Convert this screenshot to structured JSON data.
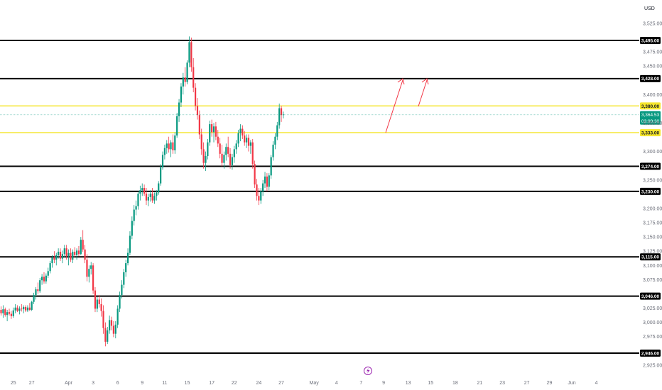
{
  "chart_data": {
    "type": "candlestick",
    "currency": "USD",
    "ylim": [
      2912,
      3538
    ],
    "y_ticks": [
      "3,525.00",
      "3,475.00",
      "3,450.00",
      "3,400.00",
      "3,350.00",
      "3,300.00",
      "3,250.00",
      "3,200.00",
      "3,175.00",
      "3,150.00",
      "3,125.00",
      "3,100.00",
      "3,075.00",
      "3,025.00",
      "3,000.00",
      "2,975.00",
      "2,925.00"
    ],
    "y_tick_values": [
      3525,
      3475,
      3450,
      3400,
      3350,
      3300,
      3250,
      3200,
      3175,
      3150,
      3125,
      3100,
      3075,
      3025,
      3000,
      2975,
      2925
    ],
    "x_ticks": [
      "25",
      "27",
      "Apr",
      "3",
      "6",
      "9",
      "11",
      "15",
      "17",
      "22",
      "24",
      "27",
      "May",
      "4",
      "7",
      "9",
      "13",
      "15",
      "18",
      "21",
      "23",
      "27",
      "29",
      "Jun",
      "4"
    ],
    "x_tick_index": [
      6,
      15,
      33,
      45,
      57,
      69,
      80,
      91,
      103,
      114,
      126,
      137,
      153,
      164,
      176,
      187,
      199,
      210,
      222,
      234,
      245,
      257,
      268,
      279,
      291
    ],
    "levels": [
      {
        "value": 3495,
        "label": "3,495.00",
        "color": "#000000"
      },
      {
        "value": 3428,
        "label": "3,428.00",
        "color": "#000000"
      },
      {
        "value": 3380,
        "label": "3,380.00",
        "color": "#f5e52d"
      },
      {
        "value": 3333,
        "label": "3,333.00",
        "color": "#f5e52d"
      },
      {
        "value": 3274,
        "label": "3,274.00",
        "color": "#000000"
      },
      {
        "value": 3230,
        "label": "3,230.00",
        "color": "#000000"
      },
      {
        "value": 3115,
        "label": "3,115.00",
        "color": "#000000"
      },
      {
        "value": 3046,
        "label": "3,046.00",
        "color": "#000000"
      },
      {
        "value": 2946,
        "label": "2,946.00",
        "color": "#000000"
      }
    ],
    "current_price": {
      "value": 3364.53,
      "label": "3,364.53",
      "countdown": "03:09:30",
      "color": "#089981"
    },
    "colors": {
      "up": "#089981",
      "down": "#f23645",
      "arrow": "#f23645"
    },
    "candles": [
      [
        3022,
        3028,
        3012,
        3016
      ],
      [
        3016,
        3030,
        3008,
        3023
      ],
      [
        3023,
        3026,
        3010,
        3013
      ],
      [
        3013,
        3022,
        3002,
        3018
      ],
      [
        3018,
        3024,
        3012,
        3015
      ],
      [
        3015,
        3020,
        3006,
        3011
      ],
      [
        3011,
        3026,
        3008,
        3021
      ],
      [
        3021,
        3032,
        3016,
        3026
      ],
      [
        3026,
        3030,
        3018,
        3020
      ],
      [
        3020,
        3028,
        3014,
        3024
      ],
      [
        3024,
        3032,
        3019,
        3023
      ],
      [
        3023,
        3030,
        3016,
        3027
      ],
      [
        3027,
        3030,
        3018,
        3021
      ],
      [
        3021,
        3030,
        3018,
        3026
      ],
      [
        3026,
        3034,
        3020,
        3022
      ],
      [
        3022,
        3038,
        3020,
        3036
      ],
      [
        3036,
        3052,
        3032,
        3048
      ],
      [
        3048,
        3062,
        3040,
        3058
      ],
      [
        3058,
        3070,
        3050,
        3055
      ],
      [
        3055,
        3078,
        3052,
        3074
      ],
      [
        3074,
        3085,
        3066,
        3080
      ],
      [
        3080,
        3088,
        3068,
        3072
      ],
      [
        3072,
        3086,
        3068,
        3082
      ],
      [
        3082,
        3096,
        3078,
        3090
      ],
      [
        3090,
        3108,
        3086,
        3104
      ],
      [
        3104,
        3118,
        3096,
        3114
      ],
      [
        3114,
        3125,
        3104,
        3110
      ],
      [
        3110,
        3122,
        3100,
        3118
      ],
      [
        3118,
        3130,
        3112,
        3124
      ],
      [
        3124,
        3130,
        3108,
        3112
      ],
      [
        3112,
        3126,
        3104,
        3120
      ],
      [
        3120,
        3136,
        3114,
        3130
      ],
      [
        3130,
        3136,
        3110,
        3116
      ],
      [
        3116,
        3128,
        3100,
        3122
      ],
      [
        3122,
        3130,
        3106,
        3110
      ],
      [
        3110,
        3128,
        3104,
        3124
      ],
      [
        3124,
        3132,
        3114,
        3118
      ],
      [
        3118,
        3130,
        3110,
        3126
      ],
      [
        3126,
        3134,
        3116,
        3120
      ],
      [
        3120,
        3150,
        3118,
        3145
      ],
      [
        3145,
        3162,
        3124,
        3128
      ],
      [
        3128,
        3136,
        3104,
        3110
      ],
      [
        3110,
        3120,
        3072,
        3080
      ],
      [
        3080,
        3100,
        3070,
        3094
      ],
      [
        3094,
        3106,
        3084,
        3100
      ],
      [
        3100,
        3104,
        3050,
        3056
      ],
      [
        3056,
        3062,
        3018,
        3024
      ],
      [
        3024,
        3045,
        3018,
        3040
      ],
      [
        3040,
        3048,
        3026,
        3032
      ],
      [
        3032,
        3042,
        3010,
        3020
      ],
      [
        3020,
        3030,
        2980,
        2990
      ],
      [
        2990,
        3000,
        2958,
        2966
      ],
      [
        2966,
        2992,
        2962,
        2986
      ],
      [
        2986,
        3012,
        2980,
        3004
      ],
      [
        3004,
        3010,
        2986,
        2994
      ],
      [
        2994,
        3002,
        2974,
        2980
      ],
      [
        2980,
        3002,
        2972,
        2996
      ],
      [
        2996,
        3030,
        2990,
        3024
      ],
      [
        3024,
        3054,
        3018,
        3048
      ],
      [
        3048,
        3074,
        3042,
        3066
      ],
      [
        3066,
        3094,
        3060,
        3088
      ],
      [
        3088,
        3110,
        3080,
        3104
      ],
      [
        3104,
        3130,
        3100,
        3122
      ],
      [
        3122,
        3160,
        3118,
        3152
      ],
      [
        3152,
        3186,
        3146,
        3178
      ],
      [
        3178,
        3206,
        3170,
        3198
      ],
      [
        3198,
        3214,
        3188,
        3204
      ],
      [
        3204,
        3230,
        3198,
        3226
      ],
      [
        3226,
        3240,
        3214,
        3232
      ],
      [
        3232,
        3244,
        3222,
        3236
      ],
      [
        3236,
        3242,
        3222,
        3226
      ],
      [
        3226,
        3236,
        3206,
        3214
      ],
      [
        3214,
        3226,
        3204,
        3220
      ],
      [
        3220,
        3232,
        3212,
        3226
      ],
      [
        3226,
        3236,
        3210,
        3214
      ],
      [
        3214,
        3228,
        3208,
        3222
      ],
      [
        3222,
        3232,
        3214,
        3228
      ],
      [
        3228,
        3248,
        3224,
        3244
      ],
      [
        3244,
        3278,
        3240,
        3272
      ],
      [
        3272,
        3300,
        3268,
        3294
      ],
      [
        3294,
        3312,
        3286,
        3306
      ],
      [
        3306,
        3320,
        3296,
        3314
      ],
      [
        3314,
        3326,
        3298,
        3304
      ],
      [
        3304,
        3320,
        3290,
        3316
      ],
      [
        3316,
        3330,
        3296,
        3302
      ],
      [
        3302,
        3334,
        3296,
        3328
      ],
      [
        3328,
        3368,
        3324,
        3362
      ],
      [
        3362,
        3392,
        3352,
        3386
      ],
      [
        3386,
        3420,
        3378,
        3414
      ],
      [
        3414,
        3438,
        3400,
        3430
      ],
      [
        3430,
        3448,
        3414,
        3422
      ],
      [
        3422,
        3460,
        3418,
        3456
      ],
      [
        3456,
        3502,
        3448,
        3492
      ],
      [
        3492,
        3500,
        3440,
        3448
      ],
      [
        3448,
        3464,
        3404,
        3412
      ],
      [
        3412,
        3420,
        3372,
        3380
      ],
      [
        3380,
        3394,
        3356,
        3364
      ],
      [
        3364,
        3372,
        3322,
        3330
      ],
      [
        3330,
        3340,
        3294,
        3304
      ],
      [
        3304,
        3316,
        3270,
        3280
      ],
      [
        3280,
        3300,
        3266,
        3292
      ],
      [
        3292,
        3322,
        3286,
        3316
      ],
      [
        3316,
        3354,
        3310,
        3348
      ],
      [
        3348,
        3356,
        3326,
        3334
      ],
      [
        3334,
        3350,
        3316,
        3344
      ],
      [
        3344,
        3352,
        3320,
        3326
      ],
      [
        3326,
        3338,
        3308,
        3314
      ],
      [
        3314,
        3324,
        3288,
        3296
      ],
      [
        3296,
        3312,
        3274,
        3280
      ],
      [
        3280,
        3300,
        3270,
        3294
      ],
      [
        3294,
        3314,
        3284,
        3308
      ],
      [
        3308,
        3326,
        3290,
        3296
      ],
      [
        3296,
        3306,
        3270,
        3276
      ],
      [
        3276,
        3296,
        3268,
        3290
      ],
      [
        3290,
        3310,
        3280,
        3304
      ],
      [
        3304,
        3320,
        3296,
        3314
      ],
      [
        3314,
        3338,
        3308,
        3332
      ],
      [
        3332,
        3348,
        3318,
        3340
      ],
      [
        3340,
        3346,
        3322,
        3328
      ],
      [
        3328,
        3336,
        3310,
        3316
      ],
      [
        3316,
        3330,
        3306,
        3324
      ],
      [
        3324,
        3330,
        3300,
        3310
      ],
      [
        3310,
        3320,
        3296,
        3316
      ],
      [
        3316,
        3322,
        3270,
        3278
      ],
      [
        3278,
        3284,
        3236,
        3242
      ],
      [
        3242,
        3252,
        3214,
        3222
      ],
      [
        3222,
        3236,
        3206,
        3214
      ],
      [
        3214,
        3236,
        3208,
        3230
      ],
      [
        3230,
        3250,
        3222,
        3244
      ],
      [
        3244,
        3264,
        3236,
        3256
      ],
      [
        3256,
        3262,
        3230,
        3238
      ],
      [
        3238,
        3262,
        3232,
        3258
      ],
      [
        3258,
        3294,
        3252,
        3290
      ],
      [
        3290,
        3318,
        3284,
        3312
      ],
      [
        3312,
        3332,
        3304,
        3326
      ],
      [
        3326,
        3352,
        3320,
        3346
      ],
      [
        3346,
        3384,
        3340,
        3376
      ],
      [
        3376,
        3380,
        3352,
        3364
      ],
      [
        3364,
        3370,
        3358,
        3365
      ]
    ]
  }
}
